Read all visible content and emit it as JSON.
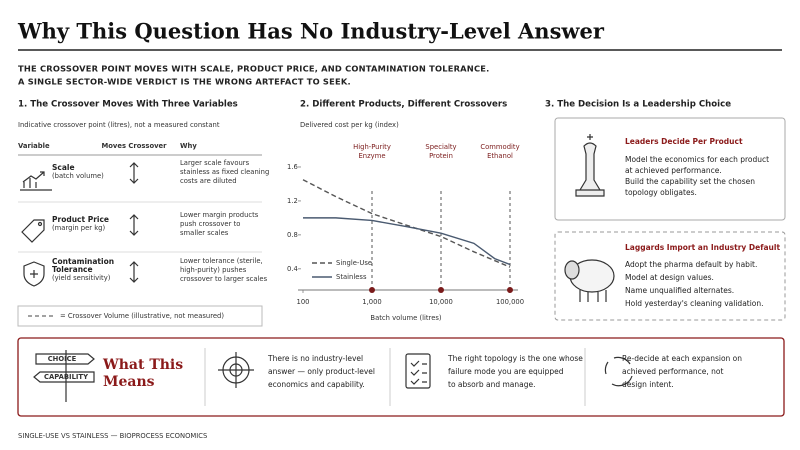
{
  "header": {
    "title": "Why This Question Has No Industry-Level Answer",
    "subtitle": [
      "THE CROSSOVER POINT MOVES WITH SCALE, PRODUCT PRICE, AND CONTAMINATION TOLERANCE.",
      "A SINGLE SECTOR-WIDE VERDICT IS THE WRONG ARTEFACT TO SEEK."
    ]
  },
  "variables": {
    "heading": "1. The Crossover Moves With Three Variables",
    "note": "Indicative crossover point (litres), not a measured constant",
    "columns": [
      "Variable",
      "Moves Crossover",
      "Why"
    ],
    "rows": [
      {
        "name": [
          "Scale"
        ],
        "detail": "(batch volume)",
        "why": [
          "Larger scale favours",
          "stainless as fixed cleaning",
          "costs are diluted"
        ]
      },
      {
        "name": [
          "Product Price"
        ],
        "detail": "(margin per kg)",
        "why": [
          "Lower margin products",
          "push crossover to",
          "smaller scales"
        ]
      },
      {
        "name": [
          "Contamination",
          "Tolerance"
        ],
        "detail": "(yield sensitivity)",
        "why": [
          "Lower tolerance (sterile,",
          "high-purity) pushes",
          "crossover to larger scales"
        ]
      }
    ],
    "legend": "= Crossover Volume (illustrative, not measured)"
  },
  "chart_data": {
    "type": "line",
    "heading": "2. Different Products, Different Crossovers",
    "y_label": "Delivered cost per kg (index)",
    "x_label": "Batch volume (litres)",
    "log_x": true,
    "xlim": [
      100,
      100000
    ],
    "ylim": [
      0.15,
      1.8
    ],
    "xticks": [
      100,
      {
        "value": 1000,
        "label": "1,000"
      },
      {
        "value": 10000,
        "label": "10,000"
      },
      {
        "value": 100000,
        "label": "100,000"
      }
    ],
    "yticks": [
      0.4,
      0.8,
      1.2,
      1.6
    ],
    "series": [
      {
        "name": "Single-Use",
        "color": "#555555",
        "dashed": true,
        "x": [
          100,
          300,
          1000,
          3000,
          10000,
          30000,
          100000
        ],
        "values": [
          1.45,
          1.25,
          1.05,
          0.92,
          0.78,
          0.6,
          0.42
        ]
      },
      {
        "name": "Stainless",
        "color": "#4a5a70",
        "dashed": false,
        "x": [
          100,
          300,
          1000,
          3000,
          10000,
          30000,
          60000,
          100000
        ],
        "values": [
          1.0,
          1.0,
          0.97,
          0.9,
          0.82,
          0.7,
          0.52,
          0.45
        ]
      }
    ],
    "crossovers": {
      "color": "#7a1a1a",
      "products": [
        [
          "High-Purity",
          "Enzyme"
        ],
        [
          "Specialty",
          "Protein"
        ],
        [
          "Commodity",
          "Ethanol"
        ]
      ],
      "x": [
        1000,
        10000,
        100000
      ]
    }
  },
  "leadership": {
    "heading": "3. The Decision Is a Leadership Choice",
    "leaders": {
      "title": "Leaders Decide Per Product",
      "lines": [
        "Model the economics for each product",
        "at achieved performance.",
        "Build the capability set the chosen",
        "topology obligates."
      ]
    },
    "laggards": {
      "title": "Laggards Import an Industry Default",
      "lines": [
        "Adopt the pharma default by habit.",
        "Model at design values.",
        "Name unqualified alternates.",
        "Hold yesterday's cleaning validation."
      ]
    }
  },
  "summary": {
    "signs": [
      "CHOICE",
      "CAPABILITY"
    ],
    "title": [
      "What This",
      "Means"
    ],
    "points": [
      [
        "There is no industry-level",
        "answer — only product-level",
        "economics and capability."
      ],
      [
        "The right topology is the one whose",
        "failure mode you are equipped",
        "to absorb and manage."
      ],
      [
        "Re-decide at each expansion on",
        "achieved performance, not",
        "design intent."
      ]
    ]
  },
  "footer": "SINGLE-USE VS STAINLESS — BIOPROCESS ECONOMICS"
}
